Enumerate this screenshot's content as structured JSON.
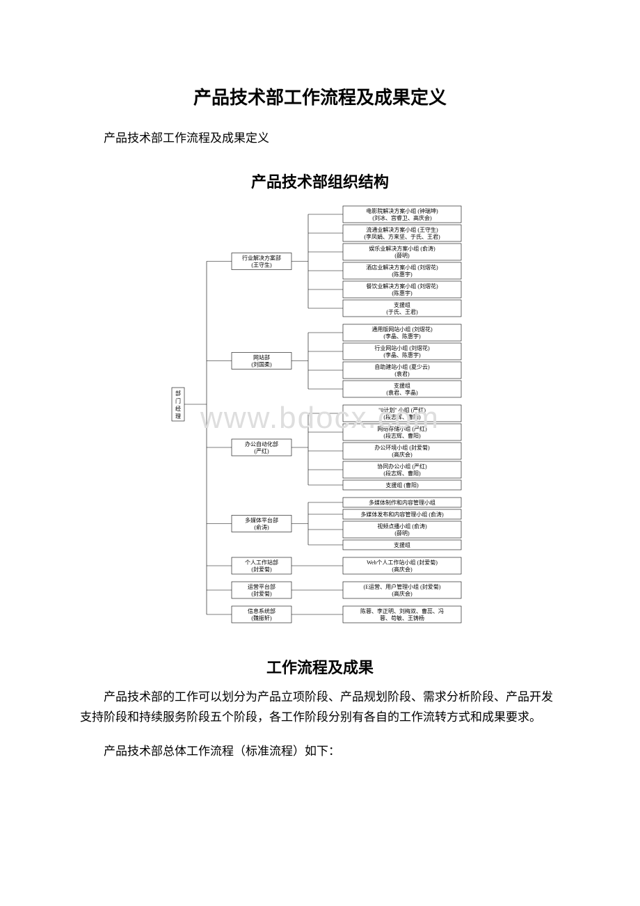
{
  "title": "产品技术部工作流程及成果定义",
  "intro": "产品技术部工作流程及成果定义",
  "section1_title": "产品技术部组织结构",
  "section2_title": "工作流程及成果",
  "para1": "产品技术部的工作可以划分为产品立项阶段、产品规划阶段、需求分析阶段、产品开发支持阶段和持续服务阶段五个阶段，各工作阶段分别有各自的工作流转方式和成果要求。",
  "para2": "产品技术部总体工作流程（标准流程）如下：",
  "watermark": "www.bdocx.com",
  "org": {
    "root": {
      "l1": "部",
      "l2": "门",
      "l3": "经",
      "l4": "理"
    },
    "depts": [
      {
        "name": "行业解决方案部",
        "lead": "(王守生)",
        "groups": [
          {
            "t1": "电影院解决方案小组 (钟瑞坤)",
            "t2": "(刘冰、宫睿卫、高庆会)"
          },
          {
            "t1": "流通业解决方案小组 (王守生)",
            "t2": "(李凤娟、方来坚、于氏、王君)"
          },
          {
            "t1": "娱乐业解决方案小组 (俞涛)",
            "t2": "(薛明)"
          },
          {
            "t1": "酒店业解决方案小组 (刘熠花)",
            "t2": "(陈惠宇)"
          },
          {
            "t1": "餐饮业解决方案小组 (刘熠花)",
            "t2": "(陈惠宇)"
          },
          {
            "t1": "支援组",
            "t2": "(于氏、王君)"
          }
        ]
      },
      {
        "name": "网站部",
        "lead": "(刘国柔)",
        "groups": [
          {
            "t1": "通用版网站小组 (刘熠花)",
            "t2": "(李晶、陈惠宇)"
          },
          {
            "t1": "行业网站小组 (刘熠花)",
            "t2": "(李晶、陈惠宇)"
          },
          {
            "t1": "自助建站小组 (夏少云)",
            "t2": "(袁君)"
          },
          {
            "t1": "支援组",
            "t2": "(袁君、李晶)"
          }
        ]
      },
      {
        "name": "办公自动化部",
        "lead": "(严红)",
        "groups": [
          {
            "t1": "\"0计划\" 小组 (严红)",
            "t2": "(段志辉、曹阳)"
          },
          {
            "t1": "网络存储小组 (严红)",
            "t2": "(段志辉、曹阳)"
          },
          {
            "t1": "办公环境小组 (封爱菊)",
            "t2": "(高庆会)"
          },
          {
            "t1": "协同办公小组 (严红)",
            "t2": "(段志辉、曹阳)"
          },
          {
            "t1": "支援组 (曹阳)",
            "t2": ""
          }
        ]
      },
      {
        "name": "多媒体平台部",
        "lead": "(俞涛)",
        "groups": [
          {
            "t1": "多媒体制作和内容管理小组",
            "t2": ""
          },
          {
            "t1": "多媒体发布和内容管理小组 (俞涛)",
            "t2": ""
          },
          {
            "t1": "视频点播小组 (俞涛)",
            "t2": "(薛明)"
          },
          {
            "t1": "支援组",
            "t2": ""
          }
        ]
      },
      {
        "name": "个人工作站部",
        "lead": "(封爱菊)",
        "groups": [
          {
            "t1": "Web个人工作站小组 (封爱菊)",
            "t2": "(高庆会)"
          }
        ]
      },
      {
        "name": "运营平台部",
        "lead": "(封爱菊)",
        "groups": [
          {
            "t1": "(E运营、用户管理小组 (封爱菊)",
            "t2": "(高庆会)"
          }
        ]
      },
      {
        "name": "信息系统部",
        "lead": "(魏振轩)",
        "groups": [
          {
            "t1": "陈蓉、李正明、刘梅双、曹蕊、冯",
            "t2": "蓉、苟敏、王铸杨"
          }
        ]
      }
    ]
  }
}
